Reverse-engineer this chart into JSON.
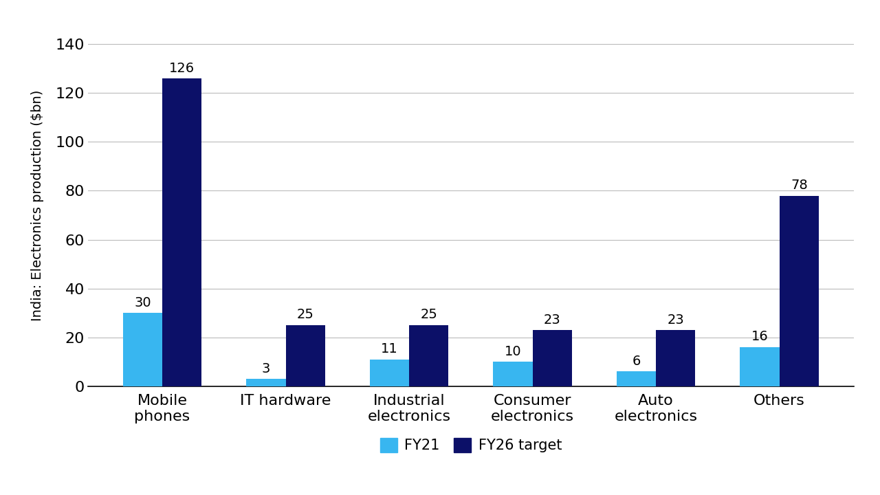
{
  "categories": [
    "Mobile\nphones",
    "IT hardware",
    "Industrial\nelectronics",
    "Consumer\nelectronics",
    "Auto\nelectronics",
    "Others"
  ],
  "fy21_values": [
    30,
    3,
    11,
    10,
    6,
    16
  ],
  "fy26_values": [
    126,
    25,
    25,
    23,
    23,
    78
  ],
  "fy21_color": "#38b6f0",
  "fy26_color": "#0c1068",
  "ylabel": "India: Electronics production ($bn)",
  "yticks": [
    0,
    20,
    40,
    60,
    80,
    100,
    120,
    140
  ],
  "ylim": [
    0,
    148
  ],
  "legend_fy21": "FY21",
  "legend_fy26": "FY26 target",
  "bar_width": 0.32,
  "background_color": "#ffffff",
  "label_fontsize": 14,
  "tick_fontsize": 16,
  "ylabel_fontsize": 14,
  "legend_fontsize": 15,
  "grid_color": "#bbbbbb",
  "bottom_spine_color": "#000000"
}
